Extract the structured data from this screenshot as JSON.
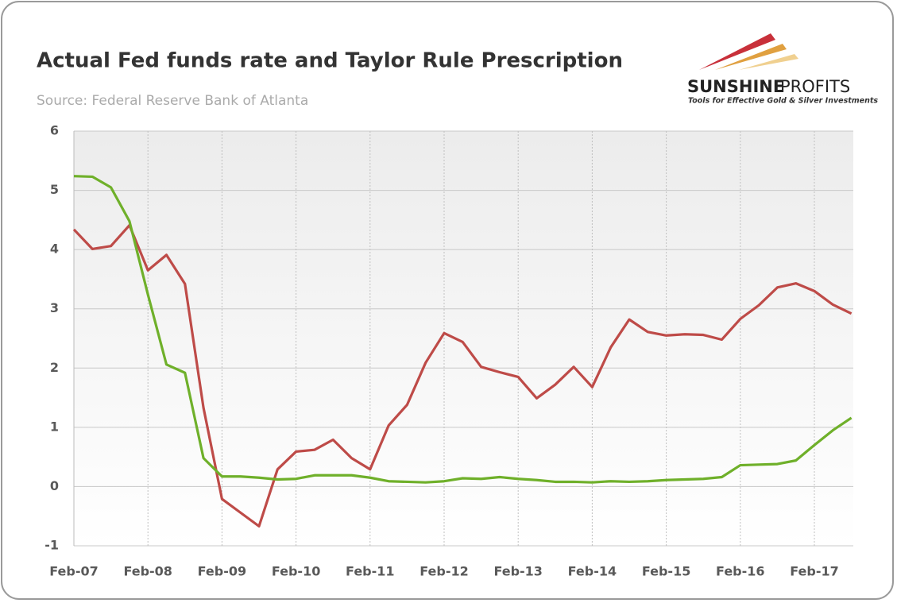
{
  "chart_data": {
    "type": "line",
    "title": "Actual Fed funds rate and Taylor Rule Prescription",
    "subtitle": "Source: Federal Reserve Bank of Atlanta",
    "categories": [
      "Feb-07",
      null,
      null,
      null,
      "Feb-08",
      null,
      null,
      null,
      "Feb-09",
      null,
      null,
      null,
      "Feb-10",
      null,
      null,
      null,
      "Feb-11",
      null,
      null,
      null,
      "Feb-12",
      null,
      null,
      null,
      "Feb-13",
      null,
      null,
      null,
      "Feb-14",
      null,
      null,
      null,
      "Feb-15",
      null,
      null,
      null,
      "Feb-16",
      null,
      null,
      null,
      "Feb-17",
      null,
      null
    ],
    "series": [
      {
        "color": "#be4b48",
        "values": [
          4.34,
          4.01,
          4.06,
          4.41,
          3.65,
          3.91,
          3.42,
          1.33,
          -0.21,
          -0.44,
          -0.67,
          0.29,
          0.59,
          0.62,
          0.79,
          0.48,
          0.29,
          1.03,
          1.38,
          2.09,
          2.59,
          2.44,
          2.02,
          1.93,
          1.85,
          1.49,
          1.72,
          2.02,
          1.68,
          2.35,
          2.82,
          2.61,
          2.55,
          2.57,
          2.56,
          2.48,
          2.83,
          3.06,
          3.36,
          3.43,
          3.3,
          3.07,
          2.92
        ]
      },
      {
        "color": "#6fb02a",
        "values": [
          5.24,
          5.23,
          5.05,
          4.48,
          3.24,
          2.06,
          1.92,
          0.48,
          0.17,
          0.17,
          0.15,
          0.12,
          0.13,
          0.19,
          0.19,
          0.19,
          0.15,
          0.09,
          0.08,
          0.07,
          0.09,
          0.14,
          0.13,
          0.16,
          0.13,
          0.11,
          0.08,
          0.08,
          0.07,
          0.09,
          0.08,
          0.09,
          0.11,
          0.12,
          0.13,
          0.16,
          0.36,
          0.37,
          0.38,
          0.44,
          0.7,
          0.95,
          1.16
        ]
      }
    ],
    "ylim": [
      -1,
      6
    ],
    "yticks": [
      -1,
      0,
      1,
      2,
      3,
      4,
      5,
      6
    ],
    "grid": true
  },
  "logo": {
    "name": [
      "SUNSHINE",
      "PROFITS"
    ],
    "tagline": "Tools for Effective Gold & Silver Investments"
  }
}
